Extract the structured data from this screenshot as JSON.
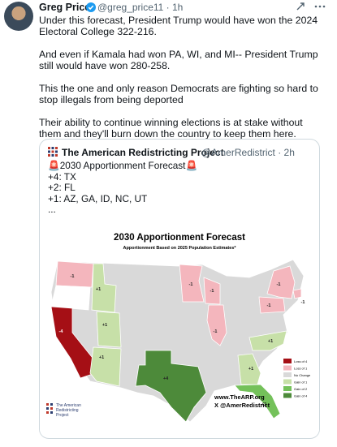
{
  "post": {
    "author": "Greg Price",
    "meta": "@greg_price11 · 1h",
    "paragraphs": [
      "Under this forecast, President Trump would have won the 2024 Electoral College 322-216.",
      "And even if Kamala had won PA, WI, and MI-- President Trump still would have won 280-258.",
      "This the one and only reason Democrats are fighting so hard to stop illegals from being deported",
      "Their ability to continue winning elections is at stake without them and they'll burn down the country to keep them here."
    ]
  },
  "quote": {
    "author": "The American Redistricting Project",
    "meta": "@AmerRedistrict · 2h",
    "lines": [
      "🚨2030 Apportionment Forecast🚨",
      "+4:  TX",
      "+2: FL",
      "+1:  AZ, GA, ID, NC, UT",
      "..."
    ],
    "image": {
      "title": "2030 Apportionment Forecast",
      "subtitle": "Apportionment Based on 2025 Population Estimates*",
      "map_labels": [
        "-1",
        "-4",
        "+1",
        "+1",
        "+1",
        "+4",
        "-1",
        "-1",
        "-1",
        "-1",
        "-1",
        "-1",
        "+1",
        "+1",
        "+2"
      ],
      "legend": [
        {
          "label": "Loss of 4",
          "color": "#a50f15"
        },
        {
          "label": "Loss of 1",
          "color": "#f4b6bd"
        },
        {
          "label": "No Change",
          "color": "#d9d9d9"
        },
        {
          "label": "Gain of 1",
          "color": "#c7e0a8"
        },
        {
          "label": "Gain of 2",
          "color": "#74c15a"
        },
        {
          "label": "Gain of 4",
          "color": "#4d8a3a"
        }
      ],
      "website": "www.TheARP.org",
      "account": "X @AmerRedistrict",
      "logo_lines": [
        "The American",
        "Redistricting",
        "Project"
      ]
    }
  }
}
